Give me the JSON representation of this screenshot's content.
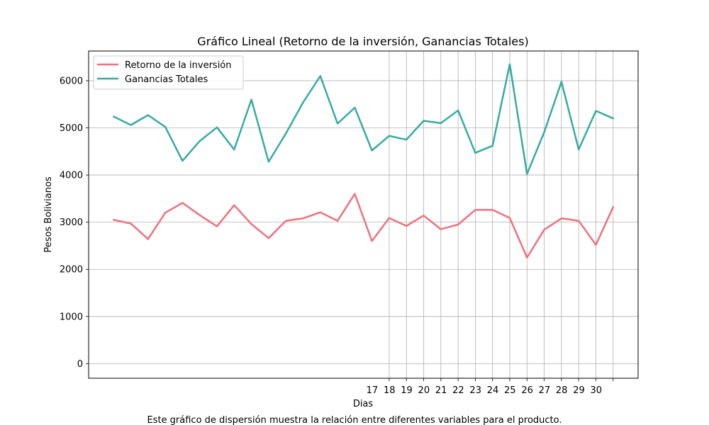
{
  "chart_data": {
    "type": "line",
    "title": "Gráfico Lineal (Retorno de la inversión, Ganancias Totales)",
    "xlabel": "Dias",
    "ylabel": "Pesos Bolivianos",
    "caption": "Este gráfico de dispersión muestra la relación entre diferentes variables para el producto.",
    "x": [
      1,
      2,
      3,
      4,
      5,
      6,
      7,
      8,
      9,
      10,
      11,
      12,
      13,
      14,
      15,
      16,
      17,
      18,
      19,
      20,
      21,
      22,
      23,
      24,
      25,
      26,
      27,
      28,
      29,
      30
    ],
    "x_tick_labels": [
      "17",
      "18",
      "19",
      "20",
      "21",
      "22",
      "23",
      "24",
      "25",
      "26",
      "27",
      "28",
      "29",
      "30"
    ],
    "x_tick_values": [
      17,
      18,
      19,
      20,
      21,
      22,
      23,
      24,
      25,
      26,
      27,
      28,
      29,
      30
    ],
    "y_ticks": [
      0,
      1000,
      2000,
      3000,
      4000,
      5000,
      6000
    ],
    "ylim": [
      -310,
      6630
    ],
    "xlim": [
      -0.45,
      31.45
    ],
    "grid": "on",
    "legend_position": "top-left",
    "series": [
      {
        "name": "Retorno de la inversión",
        "color": "#f0707f",
        "values": [
          3050,
          2970,
          2640,
          3200,
          3410,
          3150,
          2910,
          3360,
          2960,
          2660,
          3030,
          3080,
          3210,
          3030,
          3600,
          2600,
          3090,
          2920,
          3140,
          2850,
          2950,
          3260,
          3260,
          3090,
          2250,
          2840,
          3080,
          3030,
          2520,
          3320
        ]
      },
      {
        "name": "Ganancias Totales",
        "color": "#36aba3",
        "values": [
          5240,
          5060,
          5270,
          5020,
          4300,
          4720,
          5010,
          4540,
          5600,
          4280,
          4880,
          5540,
          6100,
          5090,
          5430,
          4520,
          4830,
          4750,
          5150,
          5100,
          5370,
          4470,
          4620,
          6350,
          4020,
          4910,
          5980,
          4540,
          5360,
          5200
        ]
      }
    ]
  }
}
